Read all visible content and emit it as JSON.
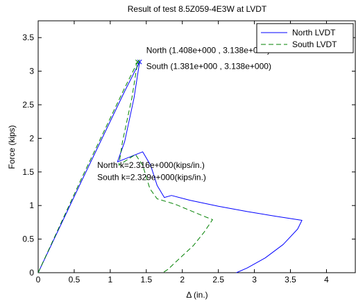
{
  "chart_data": {
    "type": "line",
    "title": "Result of test 8.5Z059-4E3W at LVDT",
    "xlabel": "Δ (in.)",
    "ylabel": "Force (kips)",
    "xlim": [
      0,
      4.4
    ],
    "ylim": [
      0,
      3.75
    ],
    "x_ticks": [
      0,
      0.5,
      1,
      1.5,
      2,
      2.5,
      3,
      3.5,
      4
    ],
    "x_tick_labels": [
      "0",
      "0.5",
      "1",
      "1.5",
      "2",
      "2.5",
      "3",
      "3.5",
      "4"
    ],
    "y_ticks": [
      0,
      0.5,
      1,
      1.5,
      2,
      2.5,
      3,
      3.5
    ],
    "y_tick_labels": [
      "0",
      "0.5",
      "1",
      "1.5",
      "2",
      "2.5",
      "3",
      "3.5"
    ],
    "grid": false,
    "legend": {
      "position": "top-right",
      "entries": [
        {
          "label": "North LVDT",
          "color": "#0000ff",
          "dash": "solid"
        },
        {
          "label": "South LVDT",
          "color": "#008000",
          "dash": "dashed"
        }
      ]
    },
    "series": [
      {
        "name": "North LVDT",
        "color": "#0000ff",
        "dash": "solid",
        "points": [
          [
            0,
            0
          ],
          [
            0.6,
            1.36
          ],
          [
            1.2,
            2.7
          ],
          [
            1.408,
            3.138
          ],
          [
            1.33,
            2.6
          ],
          [
            1.2,
            1.95
          ],
          [
            1.1,
            1.65
          ],
          [
            1.45,
            1.8
          ],
          [
            1.56,
            1.6
          ],
          [
            1.65,
            1.3
          ],
          [
            1.75,
            1.12
          ],
          [
            1.85,
            1.15
          ],
          [
            2.1,
            1.08
          ],
          [
            2.5,
            0.99
          ],
          [
            2.9,
            0.91
          ],
          [
            3.3,
            0.84
          ],
          [
            3.66,
            0.78
          ],
          [
            3.6,
            0.65
          ],
          [
            3.4,
            0.42
          ],
          [
            3.15,
            0.22
          ],
          [
            2.9,
            0.07
          ],
          [
            2.75,
            0
          ]
        ]
      },
      {
        "name": "South LVDT",
        "color": "#008000",
        "dash": "dashed",
        "points": [
          [
            0,
            0
          ],
          [
            0.6,
            1.4
          ],
          [
            1.2,
            2.75
          ],
          [
            1.381,
            3.138
          ],
          [
            1.3,
            2.6
          ],
          [
            1.17,
            1.95
          ],
          [
            1.12,
            1.6
          ],
          [
            1.35,
            1.76
          ],
          [
            1.45,
            1.6
          ],
          [
            1.55,
            1.25
          ],
          [
            1.65,
            1.1
          ],
          [
            1.9,
            1.02
          ],
          [
            2.1,
            0.93
          ],
          [
            2.3,
            0.84
          ],
          [
            2.42,
            0.79
          ],
          [
            2.3,
            0.6
          ],
          [
            2.15,
            0.4
          ],
          [
            1.95,
            0.2
          ],
          [
            1.8,
            0.05
          ],
          [
            1.73,
            0
          ]
        ]
      }
    ],
    "markers": [
      {
        "x": 1.408,
        "y": 3.138,
        "color": "#0000ff",
        "symbol": "x"
      },
      {
        "x": 1.381,
        "y": 3.138,
        "color": "#008000",
        "symbol": "x"
      }
    ],
    "annotations": [
      {
        "text": "North (1.408e+000 , 3.138e+000)",
        "x": 1.5,
        "y": 3.27
      },
      {
        "text": "South (1.381e+000 , 3.138e+000)",
        "x": 1.5,
        "y": 3.03
      },
      {
        "text": "North k=2.316e+000(kips/in.)",
        "x": 0.82,
        "y": 1.56
      },
      {
        "text": "South k=2.329e+000(kips/in.)",
        "x": 0.82,
        "y": 1.38
      }
    ]
  }
}
